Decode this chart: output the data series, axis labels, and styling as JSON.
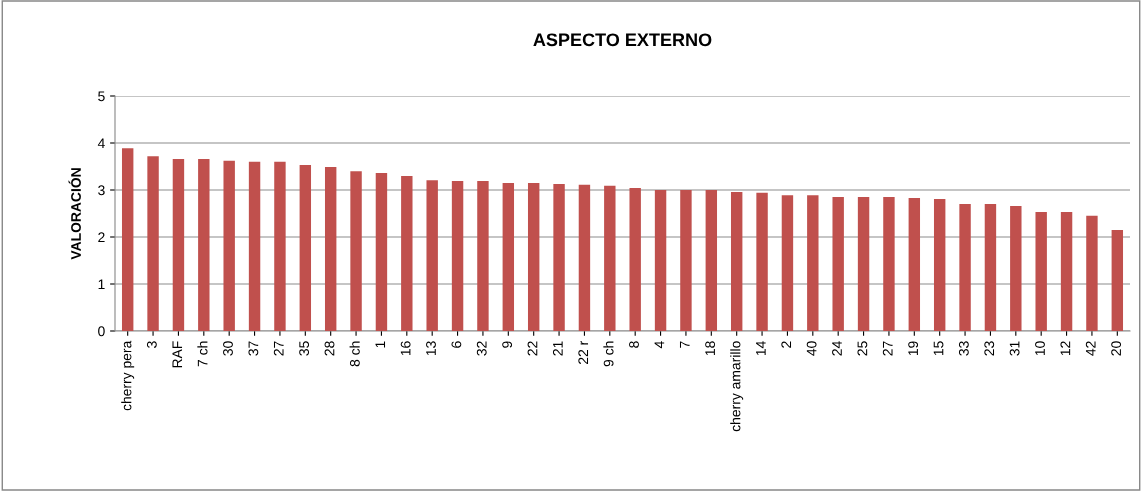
{
  "chart_data": {
    "type": "bar",
    "title": "ASPECTO EXTERNO",
    "ylabel": "VALORACIÓN",
    "categories": [
      "cherry pera",
      "3",
      "RAF",
      "7 ch",
      "30",
      "37",
      "27",
      "35",
      "28",
      "8 ch",
      "1",
      "16",
      "13",
      "6",
      "32",
      "9",
      "22",
      "21",
      "22 r",
      "9 ch",
      "8",
      "4",
      "7",
      "18",
      "cherry amarillo",
      "14",
      "2",
      "40",
      "24",
      "25",
      "27",
      "19",
      "15",
      "33",
      "23",
      "31",
      "10",
      "12",
      "42",
      "20"
    ],
    "values": [
      3.89,
      3.72,
      3.66,
      3.66,
      3.62,
      3.6,
      3.6,
      3.53,
      3.49,
      3.4,
      3.36,
      3.3,
      3.21,
      3.19,
      3.19,
      3.15,
      3.15,
      3.13,
      3.11,
      3.09,
      3.04,
      3.0,
      3.0,
      3.0,
      2.96,
      2.94,
      2.89,
      2.89,
      2.85,
      2.85,
      2.85,
      2.83,
      2.81,
      2.7,
      2.7,
      2.66,
      2.53,
      2.53,
      2.45,
      2.15
    ],
    "color": "#c0504d",
    "ylim": [
      0,
      5
    ],
    "yticks": [
      0,
      1,
      2,
      3,
      4,
      5
    ],
    "grid": "y",
    "legend": false
  }
}
